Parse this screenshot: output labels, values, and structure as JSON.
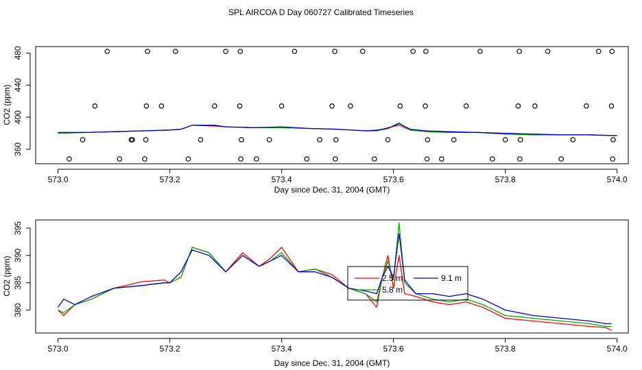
{
  "title": "SPL AIRCOA D  Day 060727  Calibrated Timeseries",
  "chart_data": [
    {
      "type": "line",
      "name": "top",
      "xlabel": "Day since Dec. 31, 2004 (GMT)",
      "ylabel": "CO2 (ppm)",
      "xlim": [
        572.96,
        574.02
      ],
      "ylim": [
        342,
        488
      ],
      "xticks": [
        573.0,
        573.2,
        573.4,
        573.6,
        573.8,
        574.0
      ],
      "xtick_labels": [
        "573.0",
        "573.2",
        "573.4",
        "573.6",
        "573.8",
        "574.0"
      ],
      "yticks": [
        360,
        400,
        440,
        480
      ],
      "ytick_labels": [
        "360",
        "400",
        "440",
        "480"
      ],
      "series": [
        {
          "name": "2.5 m",
          "color": "#ff0000",
          "x": [
            573.0,
            573.05,
            573.1,
            573.15,
            573.2,
            573.22,
            573.24,
            573.28,
            573.3,
            573.35,
            573.4,
            573.45,
            573.5,
            573.55,
            573.57,
            573.59,
            573.61,
            573.63,
            573.66,
            573.7,
            573.75,
            573.8,
            573.85,
            573.9,
            573.95,
            574.0
          ],
          "y": [
            380,
            381,
            382,
            383,
            384,
            385,
            390,
            389,
            388,
            387,
            387,
            386,
            385,
            383,
            383,
            387,
            390,
            384,
            382,
            381,
            381,
            379,
            378,
            378,
            378,
            377
          ]
        },
        {
          "name": "5.8 m",
          "color": "#00aa00",
          "x": [
            573.0,
            573.05,
            573.1,
            573.15,
            573.2,
            573.22,
            573.24,
            573.28,
            573.3,
            573.35,
            573.4,
            573.45,
            573.5,
            573.55,
            573.57,
            573.59,
            573.61,
            573.63,
            573.66,
            573.7,
            573.75,
            573.8,
            573.85,
            573.9,
            573.95,
            574.0
          ],
          "y": [
            380,
            381,
            382,
            383,
            384,
            385,
            390,
            390,
            388,
            387,
            387,
            386,
            385,
            383,
            383,
            386,
            393,
            384,
            382,
            381,
            381,
            379,
            378,
            378,
            378,
            377
          ]
        },
        {
          "name": "9.1 m",
          "color": "#0000cc",
          "x": [
            573.0,
            573.05,
            573.1,
            573.15,
            573.2,
            573.22,
            573.24,
            573.28,
            573.3,
            573.35,
            573.4,
            573.45,
            573.5,
            573.55,
            573.57,
            573.59,
            573.61,
            573.63,
            573.66,
            573.7,
            573.75,
            573.8,
            573.85,
            573.9,
            573.95,
            574.0
          ],
          "y": [
            381,
            381,
            382,
            383,
            384,
            385,
            390,
            390,
            388,
            387,
            388,
            386,
            385,
            383,
            384,
            386,
            392,
            385,
            383,
            382,
            381,
            380,
            379,
            378,
            378,
            377
          ]
        }
      ],
      "scatter": {
        "x": [
          573.02,
          573.044,
          573.066,
          573.088,
          573.11,
          573.131,
          573.133,
          573.155,
          573.157,
          573.158,
          573.16,
          573.185,
          573.21,
          573.233,
          573.255,
          573.28,
          573.3,
          573.325,
          573.326,
          573.327,
          573.328,
          573.355,
          573.378,
          573.4,
          573.423,
          573.445,
          573.468,
          573.49,
          573.495,
          573.496,
          573.497,
          573.523,
          573.545,
          573.566,
          573.59,
          573.612,
          573.635,
          573.657,
          573.658,
          573.66,
          573.661,
          573.686,
          573.708,
          573.73,
          573.755,
          573.777,
          573.8,
          573.823,
          573.825,
          573.826,
          573.827,
          573.853,
          573.876,
          573.9,
          573.921,
          573.945,
          573.967,
          573.99,
          573.991,
          573.992,
          573.993
        ],
        "y": [
          348,
          372,
          414,
          482,
          348,
          372,
          372,
          348,
          372,
          414,
          482,
          414,
          482,
          348,
          372,
          414,
          482,
          414,
          482,
          348,
          372,
          348,
          372,
          414,
          482,
          348,
          372,
          414,
          482,
          348,
          372,
          414,
          482,
          348,
          372,
          414,
          482,
          414,
          482,
          348,
          372,
          348,
          372,
          414,
          482,
          348,
          372,
          414,
          482,
          348,
          372,
          414,
          482,
          348,
          372,
          414,
          482,
          414,
          482,
          348,
          372
        ]
      }
    },
    {
      "type": "line",
      "name": "bottom",
      "xlabel": "Day since Dec. 31, 2004 (GMT)",
      "ylabel": "CO2 (ppm)",
      "xlim": [
        572.96,
        574.02
      ],
      "ylim": [
        375.8,
        396.5
      ],
      "xticks": [
        573.0,
        573.2,
        573.4,
        573.6,
        573.8,
        574.0
      ],
      "xtick_labels": [
        "573.0",
        "573.2",
        "573.4",
        "573.6",
        "573.8",
        "574.0"
      ],
      "yticks": [
        380,
        385,
        390,
        395
      ],
      "ytick_labels": [
        "380",
        "385",
        "390",
        "395"
      ],
      "legend": {
        "position": "center-right",
        "entries": [
          "2.5 m",
          "5.8 m",
          "9.1 m"
        ],
        "colors": [
          "#ff0000",
          "#00aa00",
          "#0000cc"
        ]
      },
      "series": [
        {
          "name": "2.5 m",
          "color": "#ff0000",
          "x": [
            573.0,
            573.01,
            573.03,
            573.06,
            573.1,
            573.15,
            573.19,
            573.2,
            573.22,
            573.24,
            573.27,
            573.3,
            573.33,
            573.36,
            573.38,
            573.4,
            573.43,
            573.46,
            573.49,
            573.52,
            573.55,
            573.57,
            573.58,
            573.59,
            573.6,
            573.61,
            573.62,
            573.64,
            573.67,
            573.7,
            573.73,
            573.76,
            573.8,
            573.85,
            573.9,
            573.95,
            573.98,
            573.99
          ],
          "y": [
            380.0,
            379.0,
            381.0,
            382.0,
            384.0,
            385.2,
            385.5,
            385.0,
            386.0,
            391.5,
            390.5,
            387.0,
            390.5,
            388.0,
            389.5,
            391.5,
            387.0,
            387.5,
            386.5,
            384.0,
            383.0,
            380.5,
            386.0,
            390.0,
            384.0,
            390.0,
            383.0,
            382.5,
            381.5,
            381.0,
            381.5,
            380.5,
            378.5,
            378.0,
            377.5,
            377.0,
            376.8,
            376.3
          ]
        },
        {
          "name": "5.8 m",
          "color": "#00aa00",
          "x": [
            573.0,
            573.01,
            573.03,
            573.06,
            573.1,
            573.15,
            573.19,
            573.2,
            573.22,
            573.24,
            573.27,
            573.3,
            573.33,
            573.36,
            573.38,
            573.4,
            573.43,
            573.46,
            573.49,
            573.52,
            573.55,
            573.57,
            573.58,
            573.59,
            573.6,
            573.61,
            573.62,
            573.64,
            573.67,
            573.7,
            573.73,
            573.76,
            573.8,
            573.85,
            573.9,
            573.95,
            573.98,
            573.99
          ],
          "y": [
            380.0,
            379.5,
            381.0,
            382.0,
            384.0,
            384.5,
            385.0,
            385.0,
            386.0,
            391.5,
            390.5,
            387.0,
            390.0,
            388.0,
            389.0,
            390.5,
            387.0,
            387.5,
            386.0,
            384.0,
            383.0,
            381.5,
            386.0,
            389.0,
            385.5,
            396.0,
            385.0,
            383.0,
            382.0,
            381.5,
            382.0,
            381.0,
            379.0,
            378.5,
            378.0,
            377.5,
            377.0,
            377.0
          ]
        },
        {
          "name": "9.1 m",
          "color": "#0000cc",
          "x": [
            573.0,
            573.01,
            573.03,
            573.06,
            573.1,
            573.15,
            573.19,
            573.2,
            573.22,
            573.24,
            573.27,
            573.3,
            573.33,
            573.36,
            573.38,
            573.4,
            573.43,
            573.46,
            573.49,
            573.52,
            573.55,
            573.57,
            573.58,
            573.59,
            573.6,
            573.61,
            573.62,
            573.64,
            573.67,
            573.7,
            573.73,
            573.76,
            573.8,
            573.85,
            573.9,
            573.95,
            573.98,
            573.99
          ],
          "y": [
            380.5,
            382.0,
            381.0,
            382.5,
            384.0,
            384.5,
            385.0,
            385.0,
            387.0,
            391.0,
            390.0,
            387.0,
            390.0,
            388.0,
            389.0,
            390.0,
            387.0,
            387.0,
            386.0,
            384.0,
            383.5,
            383.0,
            386.0,
            388.0,
            386.0,
            394.0,
            385.5,
            383.0,
            383.0,
            382.5,
            383.0,
            382.0,
            380.0,
            379.0,
            378.5,
            378.0,
            377.5,
            377.5
          ]
        }
      ]
    }
  ]
}
